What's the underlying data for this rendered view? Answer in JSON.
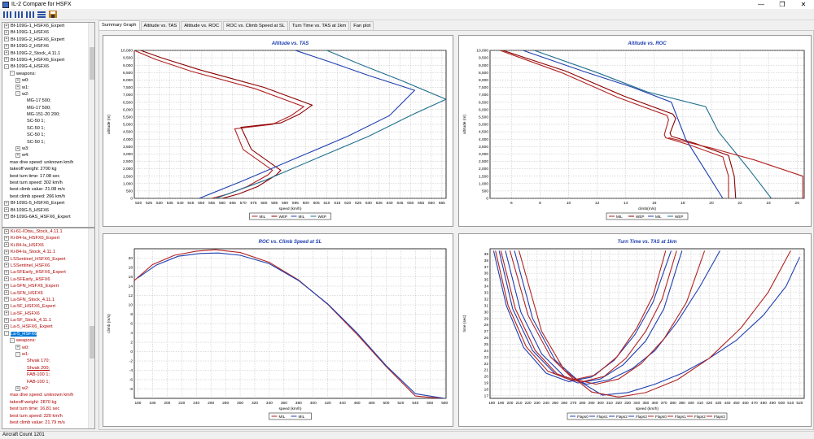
{
  "window": {
    "title": "IL-2 Compare for HSFX",
    "minimize": "—",
    "restore": "❐",
    "close": "✕"
  },
  "toolbar": {
    "buttons": [
      "col-view-1",
      "col-view-2",
      "col-view-3",
      "row-view",
      "save"
    ]
  },
  "tree_top": [
    {
      "label": "Bf-109G-1_HSFX6_Expert",
      "red": false,
      "expander": "+"
    },
    {
      "label": "Bf-109G-1_HSFX6",
      "red": false,
      "expander": "+"
    },
    {
      "label": "Bf-109G-2_HSFX6_Expert",
      "red": false,
      "expander": "+"
    },
    {
      "label": "Bf-109G-2_HSFX6",
      "red": false,
      "expander": "+"
    },
    {
      "label": "Bf-109G-2_Stock_4.11.1",
      "red": false,
      "expander": "+"
    },
    {
      "label": "Bf-109G-4_HSFX6_Expert",
      "red": false,
      "expander": "+"
    },
    {
      "label": "Bf-109G-4_HSFX6",
      "red": false,
      "expander": "-"
    },
    {
      "label": "weapons:",
      "red": false,
      "expander": "-",
      "indent": 1
    },
    {
      "label": "w0:",
      "red": false,
      "expander": "+",
      "indent": 2
    },
    {
      "label": "w1:",
      "red": false,
      "expander": "+",
      "indent": 2
    },
    {
      "label": "w2:",
      "red": false,
      "expander": "-",
      "indent": 2
    },
    {
      "label": "MG-17 500;",
      "red": false,
      "indent": 4
    },
    {
      "label": "MG-17 500;",
      "red": false,
      "indent": 4
    },
    {
      "label": "MG-151-20 200;",
      "red": false,
      "indent": 4
    },
    {
      "label": "SC-50 1;",
      "red": false,
      "indent": 4
    },
    {
      "label": "SC-50 1;",
      "red": false,
      "indent": 4
    },
    {
      "label": "SC-50 1;",
      "red": false,
      "indent": 4
    },
    {
      "label": "SC-50 1;",
      "red": false,
      "indent": 4
    },
    {
      "label": "w3:",
      "red": false,
      "expander": "+",
      "indent": 2
    },
    {
      "label": "w4:",
      "red": false,
      "expander": "+",
      "indent": 2
    },
    {
      "label": "max dive speed: unknown km/h",
      "red": false,
      "indent": 1
    },
    {
      "label": "takeoff weight: 2700 kg",
      "red": false,
      "indent": 1
    },
    {
      "label": "best turn time: 17.08 sec",
      "red": false,
      "indent": 1
    },
    {
      "label": "best turn speed: 302 km/h",
      "red": false,
      "indent": 1
    },
    {
      "label": "best climb value: 21.08 m/s",
      "red": false,
      "indent": 1
    },
    {
      "label": "best climb speed: 266 km/h",
      "red": false,
      "indent": 1
    },
    {
      "label": "Bf-109G-5_HSFX6_Expert",
      "red": false,
      "expander": "+"
    },
    {
      "label": "Bf-109G-5_HSFX6",
      "red": false,
      "expander": "+"
    },
    {
      "label": "Bf-109G-6AS_HSFX6_Expert",
      "red": false,
      "expander": "+"
    }
  ],
  "tree_bottom": [
    {
      "label": "Ki-61-IOtsu_Stock_4.11.1",
      "red": true,
      "expander": "+"
    },
    {
      "label": "Ki-84-Ia_HSFX6_Expert",
      "red": true,
      "expander": "+"
    },
    {
      "label": "Ki-84-Ia_HSFX6",
      "red": true,
      "expander": "+"
    },
    {
      "label": "Ki-84-Ia_Stock_4.11.1",
      "red": true,
      "expander": "+"
    },
    {
      "label": "LSSentinel_HSFX6_Expert",
      "red": true,
      "expander": "+"
    },
    {
      "label": "LSSentinel_HSFX6",
      "red": true,
      "expander": "+"
    },
    {
      "label": "La-5FEarly_HSFX6_Expert",
      "red": true,
      "expander": "+"
    },
    {
      "label": "La-5FEarly_HSFX6",
      "red": true,
      "expander": "+"
    },
    {
      "label": "La-5FN_HSFX6_Expert",
      "red": true,
      "expander": "+"
    },
    {
      "label": "La-5FN_HSFX6",
      "red": true,
      "expander": "+"
    },
    {
      "label": "La-5FN_Stock_4.11.1",
      "red": true,
      "expander": "+"
    },
    {
      "label": "La-5F_HSFX6_Expert",
      "red": true,
      "expander": "+"
    },
    {
      "label": "La-5F_HSFX6",
      "red": true,
      "expander": "+"
    },
    {
      "label": "La-5F_Stock_4.11.1",
      "red": true,
      "expander": "+"
    },
    {
      "label": "La-5_HSFX6_Expert",
      "red": true,
      "expander": "+"
    },
    {
      "label": "La-5_HSFX6",
      "red": false,
      "expander": "-",
      "selected": true
    },
    {
      "label": "weapons:",
      "red": true,
      "expander": "-",
      "indent": 1
    },
    {
      "label": "w0:",
      "red": true,
      "expander": "+",
      "indent": 2
    },
    {
      "label": "w1:",
      "red": true,
      "expander": "-",
      "indent": 2
    },
    {
      "label": "Shvak 170;",
      "red": true,
      "indent": 4
    },
    {
      "label": "Shvak 200;",
      "red": true,
      "indent": 4,
      "link": true
    },
    {
      "label": "FAB-100 1;",
      "red": true,
      "indent": 4
    },
    {
      "label": "FAB-100 1;",
      "red": true,
      "indent": 4
    },
    {
      "label": "w2:",
      "red": true,
      "expander": "+",
      "indent": 2
    },
    {
      "label": "max dive speed: unknown km/h",
      "red": true,
      "indent": 1
    },
    {
      "label": "takeoff weight: 2870 kg",
      "red": true,
      "indent": 1
    },
    {
      "label": "best turn time: 16.81 sec",
      "red": true,
      "indent": 1
    },
    {
      "label": "best turn speed: 320 km/h",
      "red": true,
      "indent": 1
    },
    {
      "label": "best climb value: 21.79 m/s",
      "red": true,
      "indent": 1
    }
  ],
  "tabs": [
    "Summary Graph",
    "Altitude vs. TAS",
    "Altitude vs. ROC",
    "ROC vs. Climb Speed at SL",
    "Turn Time vs. TAS at 1km",
    "Fan plot"
  ],
  "active_tab": 0,
  "colors": {
    "red": "#b22222",
    "darkred": "#8b0000",
    "blue": "#1f3fb0",
    "teal": "#1f6f8f"
  },
  "status": {
    "text": "Aircraft Count 1201"
  },
  "chart_data": [
    {
      "type": "line",
      "title": "Altitude vs. TAS",
      "xlabel": "speed (km/h)",
      "ylabel": "altitude (m)",
      "xlim": [
        518,
        667
      ],
      "ylim": [
        0,
        10000
      ],
      "xticks": [
        520,
        525,
        530,
        535,
        540,
        545,
        550,
        555,
        560,
        565,
        570,
        575,
        580,
        585,
        590,
        595,
        600,
        605,
        610,
        615,
        620,
        625,
        630,
        635,
        640,
        645,
        650,
        655,
        660,
        665
      ],
      "yticks": [
        0,
        500,
        1000,
        1500,
        2000,
        2500,
        3000,
        3500,
        4000,
        4500,
        5000,
        5500,
        6000,
        6500,
        7000,
        7500,
        8000,
        8500,
        9000,
        9500,
        10000
      ],
      "legend": [
        "MIL",
        "WEP",
        "MIL",
        "WEP"
      ],
      "series": [
        {
          "name": "MIL",
          "color": "#b22222",
          "x": [
            555,
            563,
            572,
            582,
            584,
            570,
            566,
            584,
            593,
            599,
            576,
            545,
            528,
            518
          ],
          "y": [
            0,
            300,
            800,
            1600,
            1900,
            3300,
            4700,
            5000,
            5600,
            6200,
            7400,
            8600,
            9400,
            10000
          ]
        },
        {
          "name": "WEP",
          "color": "#8b0000",
          "x": [
            560,
            568,
            577,
            586,
            588,
            574,
            569,
            588,
            597,
            603,
            580,
            549,
            531,
            521
          ],
          "y": [
            0,
            300,
            800,
            1600,
            1900,
            3300,
            4800,
            5100,
            5700,
            6300,
            7500,
            8700,
            9500,
            10000
          ]
        },
        {
          "name": "MIL",
          "color": "#1f3fb0",
          "x": [
            549,
            570,
            595,
            620,
            640,
            652,
            630,
            612,
            595
          ],
          "y": [
            0,
            1200,
            2700,
            4200,
            5600,
            7300,
            8300,
            9200,
            10000
          ]
        },
        {
          "name": "WEP",
          "color": "#1f6f8f",
          "x": [
            557,
            580,
            605,
            630,
            650,
            667,
            645,
            627,
            610
          ],
          "y": [
            0,
            1200,
            2700,
            4200,
            5600,
            6700,
            8000,
            9000,
            10000
          ]
        }
      ]
    },
    {
      "type": "line",
      "title": "Altitude vs. ROC",
      "xlabel": "climb(m/s)",
      "ylabel": "altitude (m)",
      "xlim": [
        4.5,
        26.5
      ],
      "ylim": [
        0,
        10000
      ],
      "xticks": [
        6,
        8,
        10,
        12,
        14,
        16,
        18,
        20,
        22,
        24,
        26
      ],
      "yticks": [
        0,
        500,
        1000,
        1500,
        2000,
        2500,
        3000,
        3500,
        4000,
        4500,
        5000,
        5500,
        6000,
        6500,
        7000,
        7500,
        8000,
        8500,
        9000,
        9500,
        10000
      ],
      "legend": [
        "MIL",
        "WEP",
        "MIL",
        "WEP"
      ],
      "series": [
        {
          "name": "MIL",
          "color": "#b22222",
          "x": [
            21.2,
            21.2,
            20.8,
            18.5,
            16.8,
            16.7,
            17.0,
            16.9,
            13.5,
            9.5,
            5.2
          ],
          "y": [
            0,
            1500,
            2800,
            3600,
            4100,
            4300,
            5300,
            5600,
            6800,
            8500,
            10000
          ]
        },
        {
          "name": "WEP",
          "color": "#8b0000",
          "x": [
            21.7,
            21.6,
            21.2,
            18.9,
            17.2,
            17.1,
            17.5,
            17.3,
            13.9,
            9.8,
            5.4
          ],
          "y": [
            0,
            1500,
            2900,
            3700,
            4200,
            4400,
            5400,
            5700,
            6900,
            8600,
            10000
          ]
        },
        {
          "name": "MIL",
          "color": "#1f3fb0",
          "x": [
            20.8,
            19.5,
            18.2,
            17.2,
            14.5,
            11.0,
            6.8
          ],
          "y": [
            0,
            2000,
            4000,
            6500,
            7500,
            8600,
            10000
          ]
        },
        {
          "name": "WEP",
          "color": "#1f6f8f",
          "x": [
            24.2,
            22.6,
            20.5,
            19.6,
            15.5,
            12.0,
            7.6
          ],
          "y": [
            0,
            2000,
            4500,
            6200,
            7200,
            8500,
            10000
          ]
        },
        {
          "name": "MIL",
          "color": "#b22222",
          "x": [
            17,
            20,
            23,
            26.4,
            26.4
          ],
          "y": [
            4100,
            3400,
            2600,
            1500,
            0
          ]
        }
      ]
    },
    {
      "type": "line",
      "title": "ROC vs. Climb Speed at SL",
      "xlabel": "speed (km/h)",
      "ylabel": "climb (m/s)",
      "xlim": [
        155,
        582
      ],
      "ylim": [
        -10,
        22
      ],
      "xticks": [
        160,
        180,
        200,
        220,
        240,
        260,
        280,
        300,
        320,
        340,
        360,
        380,
        400,
        420,
        440,
        460,
        480,
        500,
        520,
        540,
        560,
        580
      ],
      "yticks": [
        -8,
        -6,
        -4,
        -2,
        0,
        2,
        4,
        6,
        8,
        10,
        12,
        14,
        16,
        18,
        20
      ],
      "legend": [
        "MIL",
        "MIL"
      ],
      "series": [
        {
          "name": "MIL",
          "color": "#b22222",
          "x": [
            155,
            180,
            210,
            240,
            266,
            300,
            340,
            380,
            420,
            460,
            500,
            540,
            575
          ],
          "y": [
            15.2,
            18.6,
            20.6,
            21.5,
            21.8,
            21.2,
            19.1,
            15.3,
            10.1,
            3.7,
            -3.2,
            -9.5,
            -10
          ]
        },
        {
          "name": "MIL",
          "color": "#1f3fb0",
          "x": [
            160,
            185,
            215,
            245,
            270,
            300,
            340,
            380,
            420,
            460,
            500,
            540,
            580
          ],
          "y": [
            15.8,
            18.5,
            20.4,
            21.0,
            21.1,
            20.6,
            18.8,
            15.2,
            10.2,
            4.0,
            -3.0,
            -9.0,
            -10
          ]
        }
      ]
    },
    {
      "type": "line",
      "title": "Turn Time vs. TAS at 1km",
      "xlabel": "speed (km/h)",
      "ylabel": "time (sec)",
      "xlim": [
        178,
        525
      ],
      "ylim": [
        16.6,
        39.8
      ],
      "xticks": [
        180,
        190,
        200,
        210,
        220,
        230,
        240,
        250,
        260,
        270,
        280,
        290,
        300,
        310,
        320,
        330,
        340,
        350,
        360,
        370,
        380,
        390,
        400,
        410,
        420,
        430,
        440,
        450,
        460,
        470,
        480,
        490,
        500,
        510,
        520
      ],
      "yticks": [
        17,
        18,
        19,
        20,
        21,
        22,
        23,
        24,
        25,
        26,
        27,
        28,
        29,
        30,
        31,
        32,
        33,
        34,
        35,
        36,
        37,
        38,
        39
      ],
      "legend": [
        "Flaps0",
        "Flaps1",
        "Flaps2",
        "Flaps3",
        "Flaps0",
        "Flaps1",
        "Flaps2",
        "Flaps3"
      ],
      "series": [
        {
          "name": "Flaps0",
          "color": "#1f3fb0",
          "x": [
            205,
            225,
            250,
            275,
            302,
            330,
            360,
            390,
            420,
            450,
            480,
            505,
            520
          ],
          "y": [
            39.5,
            29,
            22.5,
            19.4,
            17.1,
            17.5,
            18.8,
            20.5,
            22.8,
            25.6,
            29.5,
            34,
            38.5
          ]
        },
        {
          "name": "Flaps1",
          "color": "#1f3fb0",
          "x": [
            195,
            212,
            235,
            260,
            285,
            310,
            335,
            360,
            385,
            410,
            432
          ],
          "y": [
            39.5,
            30,
            23.5,
            20,
            18.8,
            19.5,
            21.2,
            24,
            28.5,
            34,
            39.5
          ]
        },
        {
          "name": "Flaps2",
          "color": "#1f3fb0",
          "x": [
            188,
            203,
            225,
            250,
            275,
            300,
            325,
            350,
            370,
            390
          ],
          "y": [
            39.5,
            30.5,
            24,
            20.4,
            19,
            19.6,
            21.8,
            25.5,
            30.5,
            39.5
          ]
        },
        {
          "name": "Flaps3",
          "color": "#1f3fb0",
          "x": [
            182,
            196,
            215,
            240,
            265,
            290,
            315,
            338,
            358,
            378
          ],
          "y": [
            39.5,
            31,
            24.5,
            20.5,
            19.2,
            19.9,
            22.5,
            26.5,
            31.5,
            39.5
          ]
        },
        {
          "name": "Flaps0",
          "color": "#b22222",
          "x": [
            210,
            235,
            260,
            290,
            320,
            350,
            385,
            420,
            455,
            485,
            510
          ],
          "y": [
            39.5,
            27,
            21,
            17.6,
            16.8,
            17.5,
            19.5,
            22.8,
            27.5,
            33,
            39.5
          ]
        },
        {
          "name": "Flaps1",
          "color": "#b22222",
          "x": [
            200,
            220,
            245,
            270,
            295,
            320,
            345,
            370,
            395,
            415
          ],
          "y": [
            39.5,
            29.5,
            23,
            19.6,
            18.8,
            19.6,
            22,
            25.8,
            31.5,
            39.5
          ]
        },
        {
          "name": "Flaps2",
          "color": "#b22222",
          "x": [
            190,
            206,
            228,
            252,
            278,
            304,
            328,
            350,
            368,
            384
          ],
          "y": [
            39.5,
            30.5,
            24,
            20.4,
            19.1,
            20,
            22.8,
            27,
            32,
            39.5
          ]
        },
        {
          "name": "Flaps3",
          "color": "#b22222",
          "x": [
            184,
            198,
            218,
            242,
            268,
            294,
            318,
            340,
            358,
            372
          ],
          "y": [
            39.5,
            31,
            24.6,
            20.8,
            19.4,
            20.2,
            23,
            27.5,
            32.5,
            39.5
          ]
        }
      ]
    }
  ]
}
